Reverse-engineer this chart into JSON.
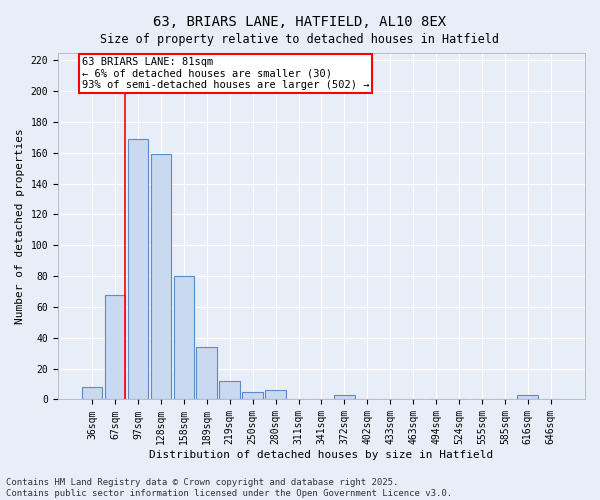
{
  "title": "63, BRIARS LANE, HATFIELD, AL10 8EX",
  "subtitle": "Size of property relative to detached houses in Hatfield",
  "xlabel": "Distribution of detached houses by size in Hatfield",
  "ylabel": "Number of detached properties",
  "categories": [
    "36sqm",
    "67sqm",
    "97sqm",
    "128sqm",
    "158sqm",
    "189sqm",
    "219sqm",
    "250sqm",
    "280sqm",
    "311sqm",
    "341sqm",
    "372sqm",
    "402sqm",
    "433sqm",
    "463sqm",
    "494sqm",
    "524sqm",
    "555sqm",
    "585sqm",
    "616sqm",
    "646sqm"
  ],
  "values": [
    8,
    68,
    169,
    159,
    80,
    34,
    12,
    5,
    6,
    0,
    0,
    3,
    0,
    0,
    0,
    0,
    0,
    0,
    0,
    3,
    0
  ],
  "bar_color": "#c9d9f0",
  "bar_edge_color": "#5b8cc8",
  "red_line_x": 1.45,
  "annotation_text": "63 BRIARS LANE: 81sqm\n← 6% of detached houses are smaller (30)\n93% of semi-detached houses are larger (502) →",
  "annotation_box_color": "white",
  "annotation_box_edge_color": "red",
  "ylim": [
    0,
    225
  ],
  "yticks": [
    0,
    20,
    40,
    60,
    80,
    100,
    120,
    140,
    160,
    180,
    200,
    220
  ],
  "background_color": "#e8eef8",
  "grid_color": "white",
  "footer": "Contains HM Land Registry data © Crown copyright and database right 2025.\nContains public sector information licensed under the Open Government Licence v3.0.",
  "title_fontsize": 10,
  "axis_label_fontsize": 8,
  "tick_fontsize": 7,
  "annotation_fontsize": 7.5,
  "footer_fontsize": 6.5
}
